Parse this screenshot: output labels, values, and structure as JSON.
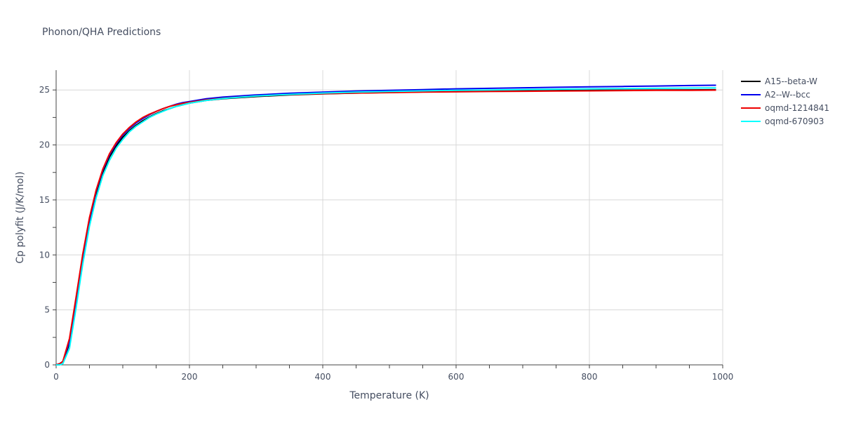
{
  "chart_data": {
    "type": "line",
    "title": "Phonon/QHA Predictions",
    "xlabel": "Temperature (K)",
    "ylabel": "Cp polyfit (J/K/mol)",
    "xlim": [
      0,
      1000
    ],
    "ylim": [
      0,
      26.8
    ],
    "xticks": [
      0,
      200,
      400,
      600,
      800,
      1000
    ],
    "yticks": [
      0,
      5,
      10,
      15,
      20,
      25
    ],
    "xtick_labels": [
      "0",
      "200",
      "400",
      "600",
      "800",
      "1000"
    ],
    "ytick_labels": [
      "0",
      "5",
      "10",
      "15",
      "20",
      "25"
    ],
    "grid": true,
    "legend_position": "right",
    "series": [
      {
        "name": "A15--beta-W",
        "color": "#000000",
        "x": [
          0,
          5,
          10,
          20,
          30,
          40,
          50,
          60,
          70,
          80,
          90,
          100,
          110,
          120,
          130,
          140,
          150,
          160,
          170,
          180,
          190,
          200,
          225,
          250,
          300,
          350,
          400,
          450,
          500,
          550,
          600,
          650,
          700,
          750,
          800,
          850,
          900,
          950,
          990
        ],
        "y": [
          0,
          0.1,
          0.3,
          1.9,
          5.6,
          9.6,
          13.0,
          15.6,
          17.5,
          18.9,
          19.9,
          20.7,
          21.3,
          21.8,
          22.2,
          22.55,
          22.85,
          23.1,
          23.3,
          23.5,
          23.65,
          23.8,
          24.05,
          24.2,
          24.4,
          24.55,
          24.65,
          24.72,
          24.78,
          24.82,
          24.86,
          24.89,
          24.92,
          24.94,
          24.96,
          24.98,
          25.0,
          25.01,
          25.02
        ]
      },
      {
        "name": "A2--W--bcc",
        "color": "#0000ee",
        "x": [
          0,
          5,
          10,
          20,
          30,
          40,
          50,
          60,
          70,
          80,
          90,
          100,
          110,
          120,
          130,
          140,
          150,
          160,
          170,
          180,
          190,
          200,
          225,
          250,
          300,
          350,
          400,
          450,
          500,
          550,
          600,
          650,
          700,
          750,
          800,
          850,
          900,
          950,
          990
        ],
        "y": [
          0,
          0.1,
          0.3,
          2.1,
          5.9,
          9.9,
          13.2,
          15.8,
          17.7,
          19.1,
          20.1,
          20.9,
          21.5,
          22.0,
          22.4,
          22.75,
          23.05,
          23.3,
          23.5,
          23.7,
          23.85,
          23.95,
          24.2,
          24.35,
          24.55,
          24.7,
          24.8,
          24.9,
          24.97,
          25.03,
          25.1,
          25.15,
          25.2,
          25.24,
          25.28,
          25.32,
          25.36,
          25.4,
          25.43
        ]
      },
      {
        "name": "oqmd-1214841",
        "color": "#ee0000",
        "x": [
          0,
          5,
          10,
          20,
          30,
          40,
          50,
          60,
          70,
          80,
          90,
          100,
          110,
          120,
          130,
          140,
          150,
          160,
          170,
          180,
          190,
          200,
          225,
          250,
          300,
          350,
          400,
          450,
          500,
          550,
          600,
          650,
          700,
          750,
          800,
          850,
          900,
          950,
          990
        ],
        "y": [
          0,
          0.1,
          0.3,
          2.4,
          6.2,
          10.1,
          13.4,
          15.9,
          17.8,
          19.2,
          20.2,
          21.0,
          21.6,
          22.1,
          22.5,
          22.8,
          23.05,
          23.3,
          23.5,
          23.65,
          23.78,
          23.88,
          24.1,
          24.25,
          24.45,
          24.58,
          24.66,
          24.72,
          24.76,
          24.8,
          24.83,
          24.86,
          24.88,
          24.9,
          24.92,
          24.94,
          24.96,
          24.97,
          24.98
        ]
      },
      {
        "name": "oqmd-670903",
        "color": "#00ffff",
        "x": [
          0,
          5,
          10,
          20,
          30,
          40,
          50,
          60,
          70,
          80,
          90,
          100,
          110,
          120,
          130,
          140,
          150,
          160,
          170,
          180,
          190,
          200,
          225,
          250,
          300,
          350,
          400,
          450,
          500,
          550,
          600,
          650,
          700,
          750,
          800,
          850,
          900,
          950,
          990
        ],
        "y": [
          0,
          0.0,
          0.1,
          1.5,
          5.2,
          9.2,
          12.6,
          15.2,
          17.2,
          18.6,
          19.7,
          20.5,
          21.2,
          21.7,
          22.1,
          22.5,
          22.8,
          23.05,
          23.3,
          23.5,
          23.65,
          23.8,
          24.05,
          24.22,
          24.45,
          24.6,
          24.72,
          24.8,
          24.86,
          24.92,
          24.97,
          25.0,
          25.04,
          25.07,
          25.1,
          25.12,
          25.15,
          25.17,
          25.19
        ]
      }
    ]
  }
}
